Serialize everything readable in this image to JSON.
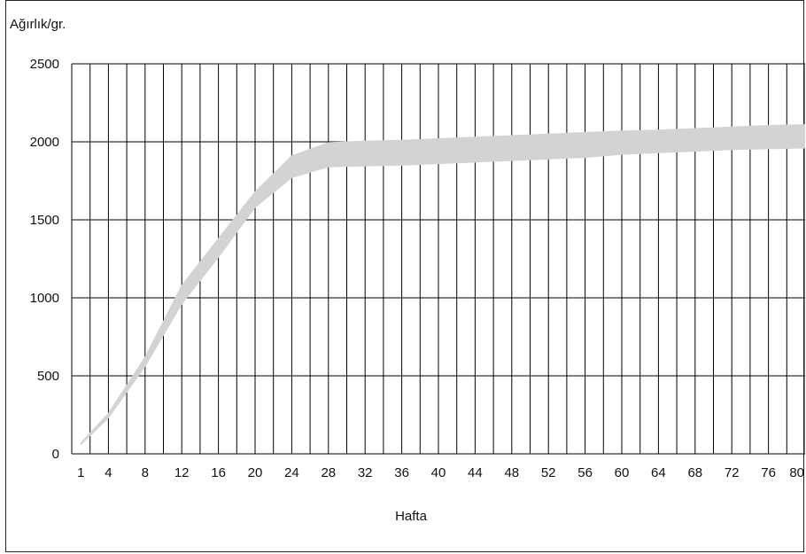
{
  "chart_data": {
    "type": "area",
    "ylabel": "Ağırlık/gr.",
    "xlabel": "Hafta",
    "x_tick_labels": [
      "1",
      "4",
      "8",
      "12",
      "16",
      "20",
      "24",
      "28",
      "32",
      "36",
      "40",
      "44",
      "48",
      "52",
      "56",
      "60",
      "64",
      "68",
      "72",
      "76",
      "80"
    ],
    "x_ticks": [
      1,
      4,
      8,
      12,
      16,
      20,
      24,
      28,
      32,
      36,
      40,
      44,
      48,
      52,
      56,
      60,
      64,
      68,
      72,
      76,
      80
    ],
    "y_tick_labels": [
      "0",
      "500",
      "1000",
      "1500",
      "2000",
      "2500"
    ],
    "y_ticks": [
      0,
      500,
      1000,
      1500,
      2000,
      2500
    ],
    "xlim": [
      0,
      80
    ],
    "ylim": [
      0,
      2500
    ],
    "grid": true,
    "band_color": "#d3d3d3",
    "series": [
      {
        "values_upper": [
          [
            1,
            70
          ],
          [
            4,
            260
          ],
          [
            8,
            620
          ],
          [
            12,
            1080
          ],
          [
            16,
            1380
          ],
          [
            20,
            1680
          ],
          [
            24,
            1910
          ],
          [
            28,
            1995
          ],
          [
            32,
            2005
          ],
          [
            36,
            2010
          ],
          [
            40,
            2020
          ],
          [
            44,
            2030
          ],
          [
            48,
            2040
          ],
          [
            52,
            2050
          ],
          [
            56,
            2060
          ],
          [
            60,
            2070
          ],
          [
            64,
            2075
          ],
          [
            68,
            2085
          ],
          [
            72,
            2095
          ],
          [
            76,
            2105
          ],
          [
            80,
            2110
          ]
        ],
        "values_lower": [
          [
            1,
            60
          ],
          [
            4,
            230
          ],
          [
            8,
            560
          ],
          [
            12,
            960
          ],
          [
            16,
            1260
          ],
          [
            20,
            1580
          ],
          [
            24,
            1770
          ],
          [
            28,
            1840
          ],
          [
            32,
            1845
          ],
          [
            36,
            1850
          ],
          [
            40,
            1860
          ],
          [
            44,
            1870
          ],
          [
            48,
            1880
          ],
          [
            52,
            1890
          ],
          [
            56,
            1900
          ],
          [
            60,
            1920
          ],
          [
            64,
            1930
          ],
          [
            68,
            1940
          ],
          [
            72,
            1950
          ],
          [
            76,
            1955
          ],
          [
            80,
            1960
          ]
        ]
      }
    ]
  }
}
